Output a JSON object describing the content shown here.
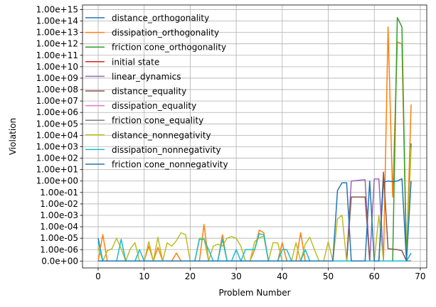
{
  "chart_data": {
    "type": "line",
    "xlabel": "Problem Number",
    "ylabel": "Violation",
    "xlim": [
      -3.4,
      71.4
    ],
    "x_ticks": [
      0,
      10,
      20,
      30,
      40,
      50,
      60,
      70
    ],
    "y_ticks": [
      "0.0e+00",
      "1.00e-06",
      "1.00e-05",
      "1.00e-04",
      "1.00e-03",
      "1.00e-02",
      "1.00e-01",
      "1.00e+00",
      "1.00e+01",
      "1.00e+02",
      "1.00e+03",
      "1.00e+04",
      "1.00e+05",
      "1.00e+06",
      "1.00e+07",
      "1.00e+08",
      "1.00e+09",
      "1.00e+10",
      "1.00e+11",
      "1.00e+12",
      "1.00e+13",
      "1.00e+14",
      "1.00e+15"
    ],
    "y_scale": "symlog-like: 0, then one decade per tick from 1e-6 to 1e15",
    "ylim_index": [
      -0.6,
      22.4
    ],
    "grid": true,
    "legend_position": "upper-left",
    "series": [
      {
        "name": "distance_orthogonality",
        "color": "#1f77b4",
        "points": [
          [
            0,
            "1.00e-05"
          ],
          [
            1,
            0
          ],
          [
            67,
            0
          ],
          [
            68,
            0
          ]
        ]
      },
      {
        "name": "dissipation_orthogonality",
        "color": "#ff7f0e",
        "points": [
          [
            0,
            0
          ],
          [
            1,
            "2e-05"
          ],
          [
            2,
            0
          ],
          [
            10,
            0
          ],
          [
            11,
            "2e-06"
          ],
          [
            12,
            0
          ],
          [
            13,
            "1.6e-06"
          ],
          [
            14,
            0
          ],
          [
            16,
            0
          ],
          [
            17,
            "5e-07"
          ],
          [
            18,
            0
          ],
          [
            22,
            0
          ],
          [
            23,
            "1.6e-04"
          ],
          [
            24,
            0
          ],
          [
            26,
            0
          ],
          [
            27,
            "2e-05"
          ],
          [
            28,
            0
          ],
          [
            33,
            0
          ],
          [
            34,
            "1e-06"
          ],
          [
            35,
            "5e-05"
          ],
          [
            36,
            "3e-05"
          ],
          [
            37,
            0
          ],
          [
            39,
            0
          ],
          [
            40,
            "4e-06"
          ],
          [
            41,
            0
          ],
          [
            43,
            0
          ],
          [
            44,
            "3e-05"
          ],
          [
            45,
            0
          ],
          [
            62,
            0
          ],
          [
            63,
            "3.0e+13"
          ],
          [
            64,
            "4e-02"
          ],
          [
            65,
            "1.5e+12"
          ],
          [
            66,
            "1.0e+12"
          ],
          [
            67,
            0
          ],
          [
            68,
            "5e+06"
          ]
        ]
      },
      {
        "name": "friction cone_orthogonality",
        "color": "#2ca02c",
        "points": [
          [
            0,
            0
          ],
          [
            64,
            0
          ],
          [
            65,
            "2.0e+14"
          ],
          [
            66,
            "3.0e+13"
          ],
          [
            67,
            0
          ],
          [
            68,
            "2e+03"
          ]
        ]
      },
      {
        "name": "initial state",
        "color": "#d62728",
        "points": [
          [
            0,
            0
          ],
          [
            68,
            0
          ]
        ]
      },
      {
        "name": "linear_dynamics",
        "color": "#9467bd",
        "points": [
          [
            0,
            0
          ],
          [
            54,
            0
          ],
          [
            55,
            "1.0e+00"
          ],
          [
            56,
            "1.1e+00"
          ],
          [
            57,
            "1.2e+00"
          ],
          [
            58,
            "1.3e+00"
          ],
          [
            59,
            0
          ],
          [
            60,
            "1.5e+00"
          ],
          [
            61,
            "1.5e+00"
          ],
          [
            62,
            0
          ],
          [
            68,
            0
          ]
        ]
      },
      {
        "name": "distance_equality",
        "color": "#8c564b",
        "points": [
          [
            0,
            0
          ],
          [
            54,
            0
          ],
          [
            55,
            "4e-02"
          ],
          [
            56,
            "4e-02"
          ],
          [
            57,
            "4e-02"
          ],
          [
            58,
            "4e-02"
          ],
          [
            59,
            0
          ],
          [
            61,
            0
          ],
          [
            62,
            "6e+00"
          ],
          [
            63,
            "1.2e-06"
          ],
          [
            64,
            "1.1e-06"
          ],
          [
            65,
            "1.0e-06"
          ],
          [
            66,
            "8e-07"
          ],
          [
            67,
            0
          ],
          [
            68,
            "5e-07"
          ]
        ]
      },
      {
        "name": "dissipation_equality",
        "color": "#e377c2",
        "points": [
          [
            0,
            0
          ],
          [
            68,
            0
          ]
        ]
      },
      {
        "name": "friction cone_equality",
        "color": "#7f7f7f",
        "points": [
          [
            0,
            0
          ],
          [
            68,
            0
          ]
        ]
      },
      {
        "name": "distance_nonnegativity",
        "color": "#bcbd22",
        "points": [
          [
            0,
            "1.5e-06"
          ],
          [
            1,
            0
          ],
          [
            2,
            "8e-07"
          ],
          [
            3,
            "1.2e-06"
          ],
          [
            4,
            "1e-05"
          ],
          [
            5,
            "1.2e-06"
          ],
          [
            6,
            0
          ],
          [
            7,
            "1.2e-06"
          ],
          [
            8,
            "4e-06"
          ],
          [
            9,
            0
          ],
          [
            10,
            0
          ],
          [
            11,
            "5e-06"
          ],
          [
            12,
            0
          ],
          [
            13,
            "1.2e-05"
          ],
          [
            14,
            0
          ],
          [
            15,
            "4e-06"
          ],
          [
            16,
            "2e-06"
          ],
          [
            17,
            "6e-06"
          ],
          [
            18,
            "3e-05"
          ],
          [
            19,
            "2e-05"
          ],
          [
            20,
            0
          ],
          [
            21,
            0
          ],
          [
            22,
            "1e-05"
          ],
          [
            23,
            "1e-05"
          ],
          [
            24,
            0
          ],
          [
            25,
            "2e-06"
          ],
          [
            26,
            "3e-06"
          ],
          [
            27,
            "2e-06"
          ],
          [
            28,
            "1e-05"
          ],
          [
            29,
            "1.4e-05"
          ],
          [
            30,
            "1e-05"
          ],
          [
            31,
            "2e-06"
          ],
          [
            32,
            0
          ],
          [
            33,
            0
          ],
          [
            34,
            "5e-06"
          ],
          [
            35,
            "1.1e-05"
          ],
          [
            36,
            "1.5e-05"
          ],
          [
            37,
            0
          ],
          [
            38,
            "4e-06"
          ],
          [
            39,
            "4e-06"
          ],
          [
            40,
            0
          ],
          [
            41,
            0
          ],
          [
            42,
            0
          ],
          [
            43,
            "4e-06"
          ],
          [
            44,
            0
          ],
          [
            45,
            "3e-06"
          ],
          [
            46,
            "1.2e-05"
          ],
          [
            47,
            "1e-06"
          ],
          [
            48,
            0
          ],
          [
            49,
            0
          ],
          [
            50,
            "5e-06"
          ],
          [
            51,
            0
          ],
          [
            52,
            "5e-04"
          ],
          [
            53,
            "1e-03"
          ],
          [
            54,
            0
          ],
          [
            60,
            0
          ],
          [
            61,
            "1e-03"
          ],
          [
            62,
            0
          ],
          [
            67,
            0
          ],
          [
            68,
            "8e+02"
          ]
        ]
      },
      {
        "name": "dissipation_nonnegativity",
        "color": "#17becf",
        "points": [
          [
            0,
            "5e-06"
          ],
          [
            1,
            0
          ],
          [
            4,
            0
          ],
          [
            5,
            "8e-06"
          ],
          [
            6,
            0
          ],
          [
            8,
            0
          ],
          [
            9,
            "1e-06"
          ],
          [
            10,
            0
          ],
          [
            21,
            0
          ],
          [
            22,
            "8e-06"
          ],
          [
            23,
            "8e-06"
          ],
          [
            24,
            "1e-06"
          ],
          [
            25,
            0
          ],
          [
            26,
            0
          ],
          [
            27,
            "8e-06"
          ],
          [
            28,
            0
          ],
          [
            29,
            0
          ],
          [
            30,
            "1e-06"
          ],
          [
            31,
            0
          ],
          [
            32,
            "1e-06"
          ],
          [
            33,
            "1e-06"
          ],
          [
            34,
            "1e-06"
          ],
          [
            35,
            "2.5e-05"
          ],
          [
            36,
            "2e-05"
          ],
          [
            37,
            0
          ],
          [
            39,
            0
          ],
          [
            40,
            "1e-06"
          ],
          [
            41,
            "1e-06"
          ],
          [
            42,
            0
          ],
          [
            44,
            0
          ],
          [
            45,
            "1e-06"
          ],
          [
            46,
            0
          ],
          [
            67,
            0
          ],
          [
            68,
            "5e-07"
          ]
        ]
      },
      {
        "name": "friction cone_nonnegativity",
        "color": "#1f77b4",
        "points": [
          [
            0,
            0
          ],
          [
            51,
            0
          ],
          [
            52,
            "1.5e-01"
          ],
          [
            53,
            "7e-01"
          ],
          [
            54,
            "7e-01"
          ],
          [
            55,
            0
          ],
          [
            58,
            0
          ],
          [
            59,
            "1.0e+00"
          ],
          [
            60,
            0
          ],
          [
            61,
            0
          ],
          [
            62,
            "8e-01"
          ],
          [
            63,
            "1.0e+00"
          ],
          [
            64,
            "9e-01"
          ],
          [
            65,
            "1.0e+00"
          ],
          [
            66,
            "1.6e+00"
          ],
          [
            67,
            0
          ],
          [
            68,
            "1.0e+00"
          ]
        ]
      }
    ]
  }
}
